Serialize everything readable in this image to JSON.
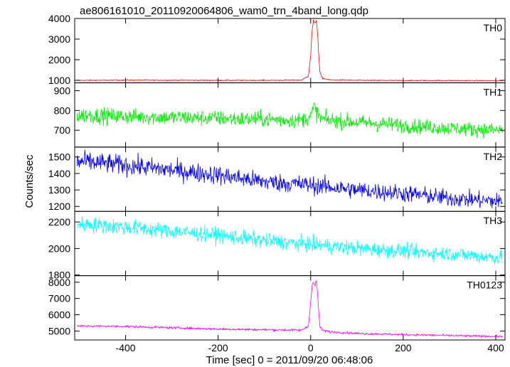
{
  "chart_data": {
    "type": "line",
    "title": "ae806161010_20110920064806_wam0_trn_4band_long.qdp",
    "xlabel": "Time [sec] 0 = 2011/09/20 06:48:06",
    "ylabel": "Counts/sec",
    "xlim": [
      -510,
      420
    ],
    "xticks": [
      -400,
      -200,
      0,
      200,
      400
    ],
    "grid": false,
    "legend": "none",
    "panels": [
      {
        "name": "TH0",
        "color": "#ff0000",
        "ylim": [
          880,
          4000
        ],
        "yticks": [
          1000,
          2000,
          3000,
          4000
        ],
        "x": [
          -480,
          -400,
          -300,
          -200,
          -100,
          -20,
          -5,
          0,
          3,
          6,
          9,
          12,
          15,
          18,
          20,
          25,
          40,
          100,
          200,
          300,
          410
        ],
        "y": [
          1000,
          1010,
          1005,
          1000,
          1000,
          1010,
          1200,
          2200,
          3400,
          3900,
          3700,
          3950,
          3300,
          2000,
          1400,
          1100,
          1020,
          1000,
          990,
          990,
          980
        ],
        "noise": 25
      },
      {
        "name": "TH1",
        "color": "#00ee00",
        "ylim": [
          615,
          940
        ],
        "yticks": [
          700,
          800,
          900
        ],
        "x": [
          -480,
          -400,
          -300,
          -200,
          -100,
          -20,
          0,
          8,
          14,
          25,
          100,
          200,
          300,
          410
        ],
        "y": [
          775,
          770,
          765,
          760,
          755,
          750,
          770,
          820,
          780,
          755,
          740,
          725,
          710,
          700
        ],
        "noise": 40
      },
      {
        "name": "TH2",
        "color": "#0000ee",
        "ylim": [
          1170,
          1560
        ],
        "yticks": [
          1200,
          1300,
          1400,
          1500
        ],
        "x": [
          -480,
          -400,
          -300,
          -200,
          -100,
          0,
          100,
          200,
          300,
          410
        ],
        "y": [
          1470,
          1450,
          1420,
          1390,
          1350,
          1330,
          1300,
          1280,
          1250,
          1230
        ],
        "noise": 60
      },
      {
        "name": "TH3",
        "color": "#00ffff",
        "ylim": [
          1795,
          2280
        ],
        "yticks": [
          1800,
          2000,
          2200
        ],
        "x": [
          -480,
          -400,
          -300,
          -200,
          -100,
          0,
          100,
          200,
          300,
          410
        ],
        "y": [
          2180,
          2160,
          2130,
          2100,
          2060,
          2030,
          2000,
          1980,
          1960,
          1930
        ],
        "noise": 60
      },
      {
        "name": "TH0123",
        "color": "#ff00ff",
        "ylim": [
          4450,
          8400
        ],
        "yticks": [
          5000,
          6000,
          7000,
          8000
        ],
        "x": [
          -480,
          -400,
          -300,
          -200,
          -100,
          -20,
          -5,
          0,
          3,
          6,
          9,
          12,
          15,
          18,
          20,
          25,
          40,
          100,
          200,
          300,
          410
        ],
        "y": [
          5300,
          5280,
          5200,
          5120,
          5080,
          5050,
          5300,
          6800,
          7800,
          8000,
          7700,
          8100,
          7300,
          5900,
          5300,
          5050,
          4950,
          4850,
          4780,
          4720,
          4660
        ],
        "noise": 70
      }
    ]
  }
}
